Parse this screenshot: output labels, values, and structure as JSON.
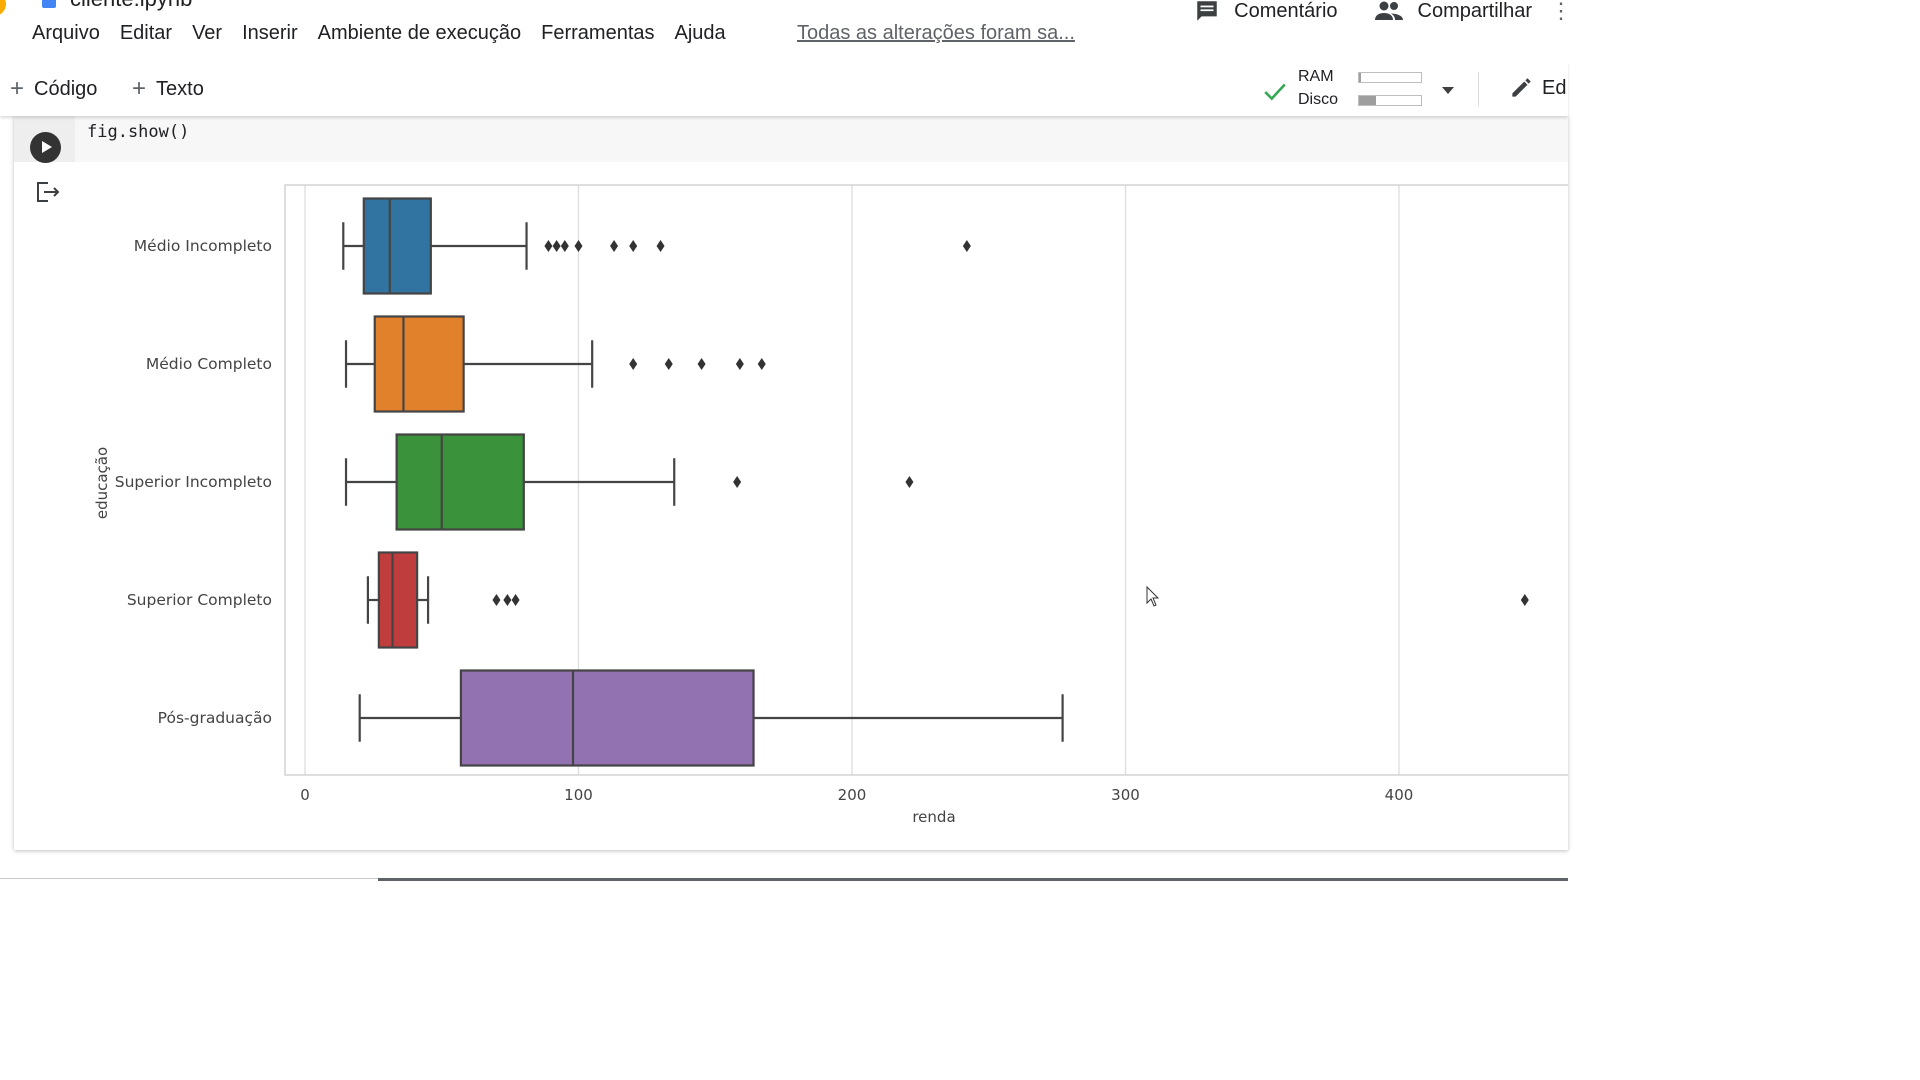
{
  "app": {
    "notebook_title_fragment": "cliente.ipynb",
    "menu": [
      "Arquivo",
      "Editar",
      "Ver",
      "Inserir",
      "Ambiente de execução",
      "Ferramentas",
      "Ajuda"
    ],
    "save_status": "Todas as alterações foram sa...",
    "comment_label": "Comentário",
    "share_label": "Compartilhar"
  },
  "toolbar": {
    "add_code_label": "Código",
    "add_text_label": "Texto",
    "ram_label": "RAM",
    "disk_label": "Disco",
    "ram_usage": 0.04,
    "disk_usage": 0.28,
    "edit_label": "Ed"
  },
  "cell": {
    "code": "fig.show()"
  },
  "colors": {
    "Médio Incompleto": "#3274a1",
    "Médio Completo": "#e1812c",
    "Superior Incompleto": "#3a923a",
    "Superior Completo": "#c03d3e",
    "Pós-graduação": "#9372b2"
  },
  "chart_data": {
    "type": "box",
    "orientation": "horizontal",
    "title": "",
    "xlabel": "renda",
    "ylabel": "educação",
    "xlim": [
      -7,
      462
    ],
    "xticks": [
      0,
      100,
      200,
      300,
      400
    ],
    "grid": "vertical",
    "categories": [
      "Médio Incompleto",
      "Médio Completo",
      "Superior Incompleto",
      "Superior Completo",
      "Pós-graduação"
    ],
    "boxes": [
      {
        "category": "Médio Incompleto",
        "whisker_low": 14,
        "q1": 21.5,
        "median": 31,
        "q3": 46,
        "whisker_high": 81,
        "outliers": [
          89,
          92,
          95,
          100,
          113,
          120,
          130,
          242
        ]
      },
      {
        "category": "Médio Completo",
        "whisker_low": 15,
        "q1": 25.5,
        "median": 36,
        "q3": 58,
        "whisker_high": 105,
        "outliers": [
          120,
          133,
          145,
          159,
          167
        ]
      },
      {
        "category": "Superior Incompleto",
        "whisker_low": 15,
        "q1": 33.5,
        "median": 50,
        "q3": 80,
        "whisker_high": 135,
        "outliers": [
          158,
          221
        ]
      },
      {
        "category": "Superior Completo",
        "whisker_low": 23,
        "q1": 27,
        "median": 32,
        "q3": 41,
        "whisker_high": 45,
        "outliers": [
          70,
          74,
          77,
          446
        ]
      },
      {
        "category": "Pós-graduação",
        "whisker_low": 20,
        "q1": 57,
        "median": 98,
        "q3": 164,
        "whisker_high": 277,
        "outliers": []
      }
    ]
  }
}
